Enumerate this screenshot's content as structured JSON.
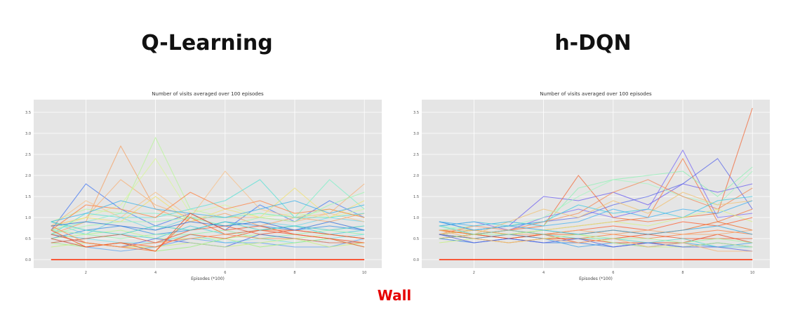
{
  "panels": {
    "left_heading": "Q-Learning",
    "right_heading": "h-DQN",
    "annotation": "Wall"
  },
  "chart_data": [
    {
      "type": "line",
      "title": "Number of visits averaged over 100 episodes",
      "xlabel": "Episodes (*100)",
      "ylabel": "",
      "xlim": [
        0.5,
        10.5
      ],
      "ylim": [
        -0.2,
        3.8
      ],
      "xticks": [
        2,
        4,
        6,
        8,
        10
      ],
      "yticks": [
        0.0,
        0.5,
        1.0,
        1.5,
        2.0,
        2.5,
        3.0,
        3.5
      ],
      "ytick_labels": [
        "0.0",
        "0.5",
        "1.0",
        "1.5",
        "2.0",
        "2.5",
        "3.0",
        "3.5"
      ],
      "grid": true,
      "x": [
        1,
        2,
        3,
        4,
        5,
        6,
        7,
        8,
        9,
        10
      ],
      "series": [
        {
          "values": [
            0.9,
            0.6,
            1.0,
            0.7,
            1.0,
            0.8,
            0.9,
            0.8,
            1.0,
            0.9
          ],
          "color": "#6fd3e6"
        },
        {
          "values": [
            0.7,
            1.8,
            1.2,
            0.8,
            1.1,
            0.7,
            1.3,
            0.9,
            1.4,
            1.0
          ],
          "color": "#4a7cf0"
        },
        {
          "values": [
            0.6,
            0.9,
            2.7,
            1.2,
            0.9,
            1.1,
            0.8,
            1.0,
            0.9,
            1.1
          ],
          "color": "#f4a064"
        },
        {
          "values": [
            0.8,
            1.0,
            1.9,
            1.3,
            1.0,
            1.0,
            1.0,
            0.9,
            1.1,
            1.8
          ],
          "color": "#f6b27a"
        },
        {
          "values": [
            0.9,
            1.2,
            1.1,
            2.9,
            1.2,
            1.0,
            1.1,
            1.0,
            1.2,
            1.0
          ],
          "color": "#b8f59a"
        },
        {
          "values": [
            0.7,
            1.0,
            1.3,
            2.4,
            1.1,
            1.3,
            1.0,
            1.1,
            1.0,
            1.2
          ],
          "color": "#d7f79a"
        },
        {
          "values": [
            0.8,
            1.4,
            1.0,
            1.6,
            1.0,
            2.1,
            1.2,
            1.0,
            1.1,
            0.9
          ],
          "color": "#f7c08a"
        },
        {
          "values": [
            0.6,
            1.1,
            1.0,
            1.0,
            1.2,
            1.4,
            1.9,
            1.0,
            1.0,
            1.1
          ],
          "color": "#59e0d6"
        },
        {
          "values": [
            0.7,
            0.9,
            1.1,
            1.1,
            1.0,
            1.0,
            1.1,
            1.0,
            1.9,
            1.2
          ],
          "color": "#7ef0c8"
        },
        {
          "values": [
            0.8,
            1.0,
            0.9,
            1.5,
            0.9,
            1.2,
            1.0,
            1.7,
            1.0,
            1.4
          ],
          "color": "#f0e070"
        },
        {
          "values": [
            0.7,
            1.3,
            1.2,
            1.0,
            1.6,
            1.2,
            1.4,
            1.1,
            1.2,
            1.0
          ],
          "color": "#ff8040"
        },
        {
          "values": [
            0.9,
            1.1,
            1.4,
            1.2,
            1.1,
            1.0,
            1.2,
            1.4,
            1.1,
            1.3
          ],
          "color": "#3ab0e8"
        },
        {
          "values": [
            0.6,
            0.8,
            0.9,
            0.9,
            1.0,
            0.8,
            1.0,
            0.9,
            1.3,
            1.6
          ],
          "color": "#9cf7b0"
        },
        {
          "values": [
            0.5,
            0.7,
            0.8,
            0.6,
            0.7,
            0.9,
            0.8,
            0.7,
            0.8,
            0.7
          ],
          "color": "#2f8ee8"
        },
        {
          "values": [
            0.6,
            0.5,
            0.6,
            0.5,
            0.8,
            0.6,
            0.7,
            0.8,
            0.6,
            0.7
          ],
          "color": "#47c9e0"
        },
        {
          "values": [
            0.7,
            0.6,
            0.5,
            0.6,
            0.6,
            0.7,
            0.5,
            0.6,
            0.7,
            0.6
          ],
          "color": "#8ef4a8"
        },
        {
          "values": [
            0.5,
            0.6,
            0.7,
            0.5,
            0.5,
            0.5,
            0.6,
            0.5,
            0.6,
            0.5
          ],
          "color": "#b6f78c"
        },
        {
          "values": [
            0.4,
            0.5,
            0.4,
            0.4,
            0.6,
            0.4,
            0.5,
            0.4,
            0.5,
            0.6
          ],
          "color": "#6ee0e8"
        },
        {
          "values": [
            0.6,
            0.4,
            0.3,
            0.5,
            0.4,
            0.3,
            0.6,
            0.5,
            0.4,
            0.4
          ],
          "color": "#4a64e6"
        },
        {
          "values": [
            0.5,
            0.3,
            0.2,
            0.3,
            0.5,
            0.4,
            0.4,
            0.3,
            0.3,
            0.5
          ],
          "color": "#5aa0f0"
        },
        {
          "values": [
            0.4,
            0.3,
            0.4,
            0.2,
            0.3,
            0.5,
            0.3,
            0.4,
            0.5,
            0.3
          ],
          "color": "#9af07c"
        },
        {
          "values": [
            0.3,
            0.4,
            0.3,
            0.3,
            0.4,
            0.3,
            0.4,
            0.5,
            0.3,
            0.4
          ],
          "color": "#c6f07a"
        },
        {
          "values": [
            0.7,
            0.3,
            0.4,
            0.2,
            1.1,
            0.7,
            0.8,
            0.6,
            0.5,
            0.4
          ],
          "color": "#f24a1c"
        },
        {
          "values": [
            0.6,
            0.4,
            0.3,
            0.2,
            1.0,
            0.6,
            0.7,
            0.7,
            0.6,
            0.5
          ],
          "color": "#ff6a2a"
        },
        {
          "values": [
            0.5,
            0.3,
            0.4,
            0.3,
            0.6,
            0.5,
            0.7,
            0.6,
            0.5,
            0.3
          ],
          "color": "#f6562a"
        },
        {
          "values": [
            0.8,
            0.4,
            0.3,
            0.4,
            0.5,
            0.6,
            0.5,
            0.5,
            0.4,
            0.4
          ],
          "color": "#ff8a4a"
        },
        {
          "values": [
            0.4,
            0.5,
            0.6,
            0.4,
            0.7,
            0.8,
            0.6,
            0.7,
            0.6,
            0.5
          ],
          "color": "#e85a3a"
        },
        {
          "values": [
            0.9,
            0.7,
            0.6,
            0.8,
            0.7,
            0.9,
            0.7,
            0.8,
            0.7,
            0.8
          ],
          "color": "#3ad0c0"
        },
        {
          "values": [
            0.8,
            0.9,
            0.8,
            0.7,
            0.9,
            0.8,
            0.9,
            0.7,
            0.9,
            0.7
          ],
          "color": "#2c6cd8"
        },
        {
          "values": [
            0.0,
            0.0,
            0.0,
            0.0,
            0.0,
            0.0,
            0.0,
            0.0,
            0.0,
            0.0
          ],
          "color": "#ff2a00"
        }
      ]
    },
    {
      "type": "line",
      "title": "Number of visits averaged over 100 episodes",
      "xlabel": "Episodes (*100)",
      "ylabel": "",
      "xlim": [
        0.5,
        10.5
      ],
      "ylim": [
        -0.2,
        3.8
      ],
      "xticks": [
        2,
        4,
        6,
        8,
        10
      ],
      "yticks": [
        0.0,
        0.5,
        1.0,
        1.5,
        2.0,
        2.5,
        3.0,
        3.5
      ],
      "ytick_labels": [
        "0.0",
        "0.5",
        "1.0",
        "1.5",
        "2.0",
        "2.5",
        "3.0",
        "3.5"
      ],
      "grid": true,
      "x": [
        1,
        2,
        3,
        4,
        5,
        6,
        7,
        8,
        9,
        10
      ],
      "series": [
        {
          "values": [
            0.9,
            0.7,
            0.8,
            1.5,
            1.4,
            1.6,
            1.3,
            1.8,
            1.6,
            1.8
          ],
          "color": "#6a5cf0"
        },
        {
          "values": [
            0.8,
            0.9,
            0.7,
            1.0,
            1.2,
            1.0,
            1.2,
            2.6,
            1.0,
            1.1
          ],
          "color": "#7a6af4"
        },
        {
          "values": [
            0.6,
            0.7,
            0.8,
            0.9,
            1.0,
            1.3,
            1.5,
            1.8,
            2.4,
            1.2
          ],
          "color": "#5a68ea"
        },
        {
          "values": [
            0.7,
            0.6,
            0.7,
            0.8,
            2.0,
            1.0,
            0.9,
            1.0,
            1.1,
            3.6
          ],
          "color": "#f26a3a"
        },
        {
          "values": [
            0.6,
            0.7,
            0.6,
            0.7,
            0.8,
            0.9,
            1.0,
            2.4,
            0.9,
            1.2
          ],
          "color": "#f47a40"
        },
        {
          "values": [
            0.7,
            0.8,
            0.9,
            0.8,
            1.7,
            1.9,
            2.0,
            2.1,
            1.5,
            2.2
          ],
          "color": "#8ef0b4"
        },
        {
          "values": [
            0.8,
            0.7,
            0.8,
            1.0,
            1.5,
            1.9,
            1.8,
            1.5,
            1.3,
            2.1
          ],
          "color": "#a6f5c0"
        },
        {
          "values": [
            0.6,
            0.8,
            0.7,
            0.9,
            1.1,
            1.6,
            1.9,
            1.5,
            1.2,
            1.7
          ],
          "color": "#f28a5a"
        },
        {
          "values": [
            0.7,
            0.6,
            0.9,
            1.2,
            1.0,
            1.4,
            1.1,
            1.6,
            1.3,
            1.4
          ],
          "color": "#f0c070"
        },
        {
          "values": [
            0.8,
            0.9,
            0.8,
            0.9,
            1.3,
            1.1,
            1.2,
            1.0,
            1.4,
            1.5
          ],
          "color": "#3ec8e0"
        },
        {
          "values": [
            0.9,
            0.8,
            0.9,
            0.8,
            0.9,
            1.2,
            1.0,
            1.2,
            1.1,
            1.4
          ],
          "color": "#40b0f0"
        },
        {
          "values": [
            0.6,
            0.7,
            0.6,
            0.7,
            0.8,
            0.9,
            0.8,
            1.0,
            1.2,
            0.9
          ],
          "color": "#d8f080"
        },
        {
          "values": [
            0.5,
            0.6,
            0.7,
            0.6,
            0.7,
            0.8,
            0.7,
            0.9,
            0.8,
            1.0
          ],
          "color": "#ff5a2a"
        },
        {
          "values": [
            0.7,
            0.6,
            0.5,
            0.6,
            0.6,
            0.7,
            0.6,
            0.7,
            0.9,
            0.7
          ],
          "color": "#f0641e"
        },
        {
          "values": [
            0.6,
            0.5,
            0.6,
            0.5,
            0.5,
            0.6,
            0.5,
            0.6,
            0.7,
            0.6
          ],
          "color": "#ff7a3a"
        },
        {
          "values": [
            0.5,
            0.6,
            0.5,
            0.6,
            0.4,
            0.5,
            0.6,
            0.5,
            0.5,
            0.5
          ],
          "color": "#f24e20"
        },
        {
          "values": [
            0.6,
            0.5,
            0.4,
            0.5,
            0.5,
            0.4,
            0.4,
            0.4,
            0.6,
            0.4
          ],
          "color": "#e8461e"
        },
        {
          "values": [
            0.7,
            0.7,
            0.6,
            0.6,
            0.7,
            0.6,
            0.7,
            0.6,
            0.6,
            0.7
          ],
          "color": "#f6a060"
        },
        {
          "values": [
            0.5,
            0.4,
            0.5,
            0.4,
            0.4,
            0.3,
            0.4,
            0.3,
            0.4,
            0.3
          ],
          "color": "#2c7ae6"
        },
        {
          "values": [
            0.6,
            0.5,
            0.6,
            0.5,
            0.3,
            0.4,
            0.3,
            0.4,
            0.3,
            0.4
          ],
          "color": "#3aa0ea"
        },
        {
          "values": [
            0.8,
            0.6,
            0.7,
            0.6,
            0.5,
            0.5,
            0.4,
            0.5,
            0.3,
            0.3
          ],
          "color": "#56d8d0"
        },
        {
          "values": [
            0.5,
            0.6,
            0.6,
            0.7,
            0.6,
            0.5,
            0.5,
            0.4,
            0.5,
            0.4
          ],
          "color": "#9cf49c"
        },
        {
          "values": [
            0.4,
            0.5,
            0.4,
            0.5,
            0.6,
            0.4,
            0.3,
            0.3,
            0.4,
            0.3
          ],
          "color": "#c4f07c"
        },
        {
          "values": [
            0.6,
            0.4,
            0.5,
            0.4,
            0.5,
            0.3,
            0.4,
            0.3,
            0.3,
            0.2
          ],
          "color": "#4e5ce0"
        },
        {
          "values": [
            0.7,
            0.5,
            0.4,
            0.5,
            0.4,
            0.5,
            0.3,
            0.4,
            0.2,
            0.2
          ],
          "color": "#f5b070"
        },
        {
          "values": [
            0.9,
            0.7,
            0.8,
            0.7,
            0.6,
            0.7,
            0.6,
            0.7,
            0.8,
            0.6
          ],
          "color": "#2ea8e0"
        },
        {
          "values": [
            0.0,
            0.0,
            0.0,
            0.0,
            0.0,
            0.0,
            0.0,
            0.0,
            0.0,
            0.0
          ],
          "color": "#ff2a00"
        }
      ]
    }
  ]
}
